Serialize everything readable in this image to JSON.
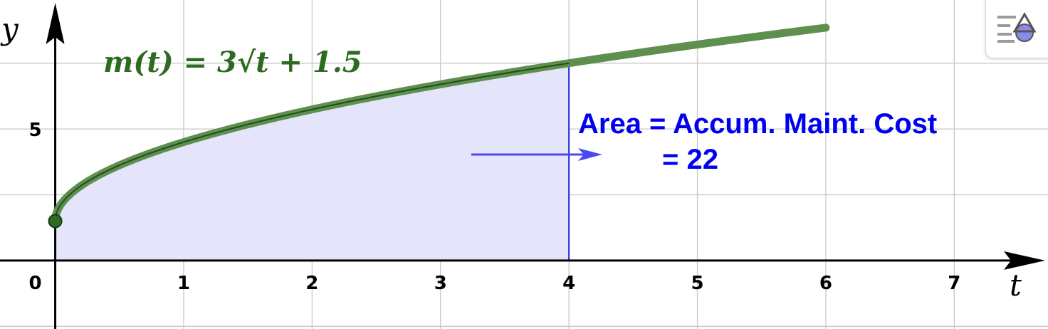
{
  "chart_data": {
    "type": "area",
    "x": [
      0,
      0.05,
      0.1,
      0.2,
      0.35,
      0.5,
      0.75,
      1,
      1.25,
      1.5,
      2,
      2.5,
      3,
      3.5,
      4,
      4.5,
      5,
      5.5,
      6
    ],
    "y": [
      1.5,
      2.171,
      2.449,
      2.842,
      3.275,
      3.621,
      4.098,
      4.5,
      4.854,
      5.174,
      5.743,
      6.243,
      6.696,
      7.112,
      7.5,
      7.864,
      8.208,
      8.536,
      8.849
    ],
    "shaded_interval": [
      0,
      4
    ],
    "start_point": [
      0,
      1.5
    ],
    "xlim": [
      -0.43,
      7.73
    ],
    "ylim": [
      -2.6,
      9.9
    ],
    "x_ticks": [
      "0",
      "1",
      "2",
      "3",
      "4",
      "5",
      "6",
      "7"
    ],
    "y_ticks": [
      "5"
    ],
    "xlabel": "t",
    "ylabel": "y",
    "formula": "m(t) = 3√t + 1.5",
    "annotation_line1": "Area = Accum. Maint. Cost",
    "annotation_line2": "= 22",
    "grid": true,
    "colors": {
      "curve": "#5e8f4f",
      "curve_core": "#1f4f1a",
      "fill": "#e4e4fa",
      "fill_edge": "#2a2ad0",
      "arrow": "#4a4af0",
      "point": "#2e6b22",
      "text_blue": "#0000ee"
    }
  },
  "toolbar": {
    "style_icon": "style-bar-icon"
  }
}
